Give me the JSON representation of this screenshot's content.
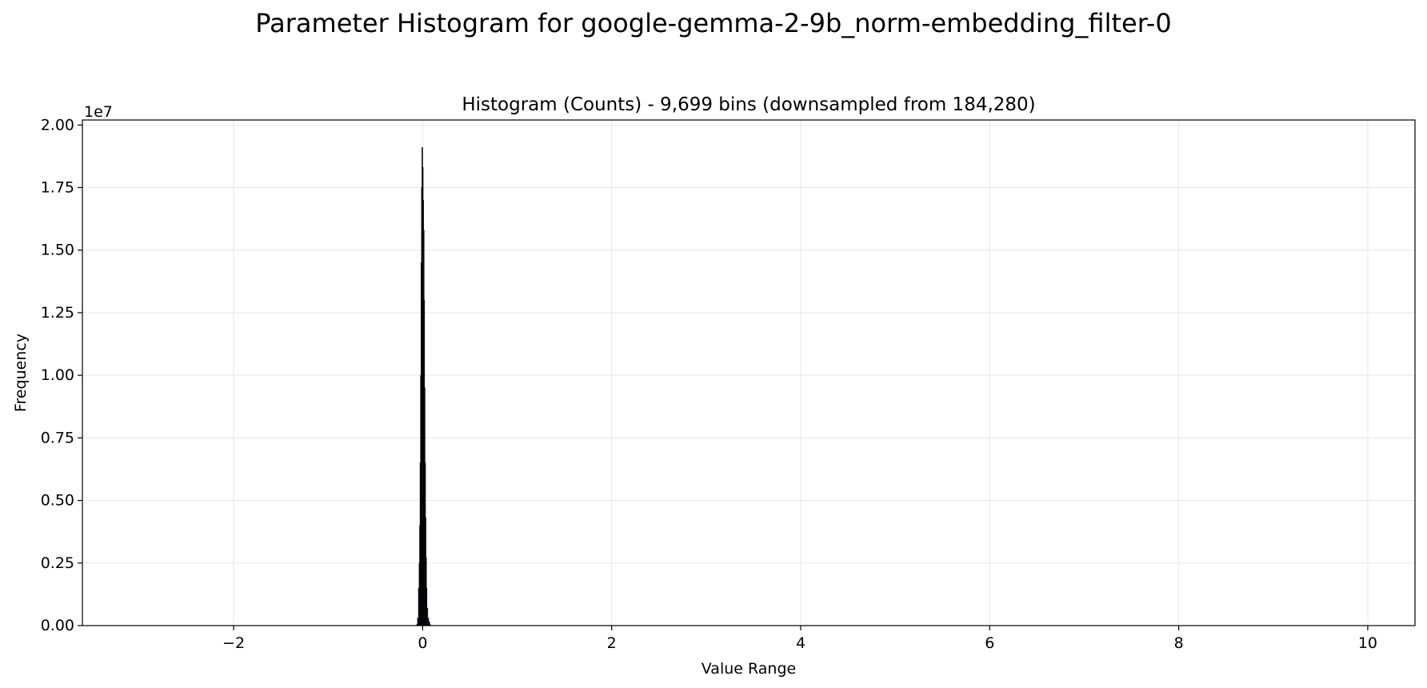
{
  "figure": {
    "suptitle": "Parameter Histogram for google-gemma-2-9b_norm-embedding_filter-0"
  },
  "chart_data": {
    "type": "bar",
    "title": "Histogram (Counts) - 9,699 bins (downsampled from 184,280)",
    "xlabel": "Value Range",
    "ylabel": "Frequency",
    "y_offset_label": "1e7",
    "xlim": [
      -3.6,
      10.5
    ],
    "ylim": [
      0,
      20200000
    ],
    "xticks": [
      -2,
      0,
      2,
      4,
      6,
      8,
      10
    ],
    "xtick_labels": [
      "−2",
      "0",
      "2",
      "4",
      "6",
      "8",
      "10"
    ],
    "yticks": [
      0,
      2500000,
      5000000,
      7500000,
      10000000,
      12500000,
      15000000,
      17500000,
      20000000
    ],
    "ytick_labels": [
      "0.00",
      "0.25",
      "0.50",
      "0.75",
      "1.00",
      "1.25",
      "1.50",
      "1.75",
      "2.00"
    ],
    "grid": true,
    "bar_color": "#1f1f3a",
    "bar_edge_color": "#000000",
    "series": [
      {
        "x": [
          -0.06,
          -0.05,
          -0.04,
          -0.035,
          -0.03,
          -0.025,
          -0.02,
          -0.015,
          -0.01,
          -0.005,
          0.0,
          0.005,
          0.01,
          0.015,
          0.02,
          0.025,
          0.03,
          0.035,
          0.04,
          0.05,
          0.06,
          0.07,
          0.08
        ],
        "values": [
          50000,
          300000,
          1500000,
          2500000,
          4000000,
          6500000,
          10000000,
          14500000,
          17500000,
          19100000,
          18300000,
          17000000,
          15800000,
          13000000,
          9500000,
          6500000,
          4300000,
          2700000,
          1500000,
          700000,
          300000,
          150000,
          40000
        ]
      }
    ]
  }
}
